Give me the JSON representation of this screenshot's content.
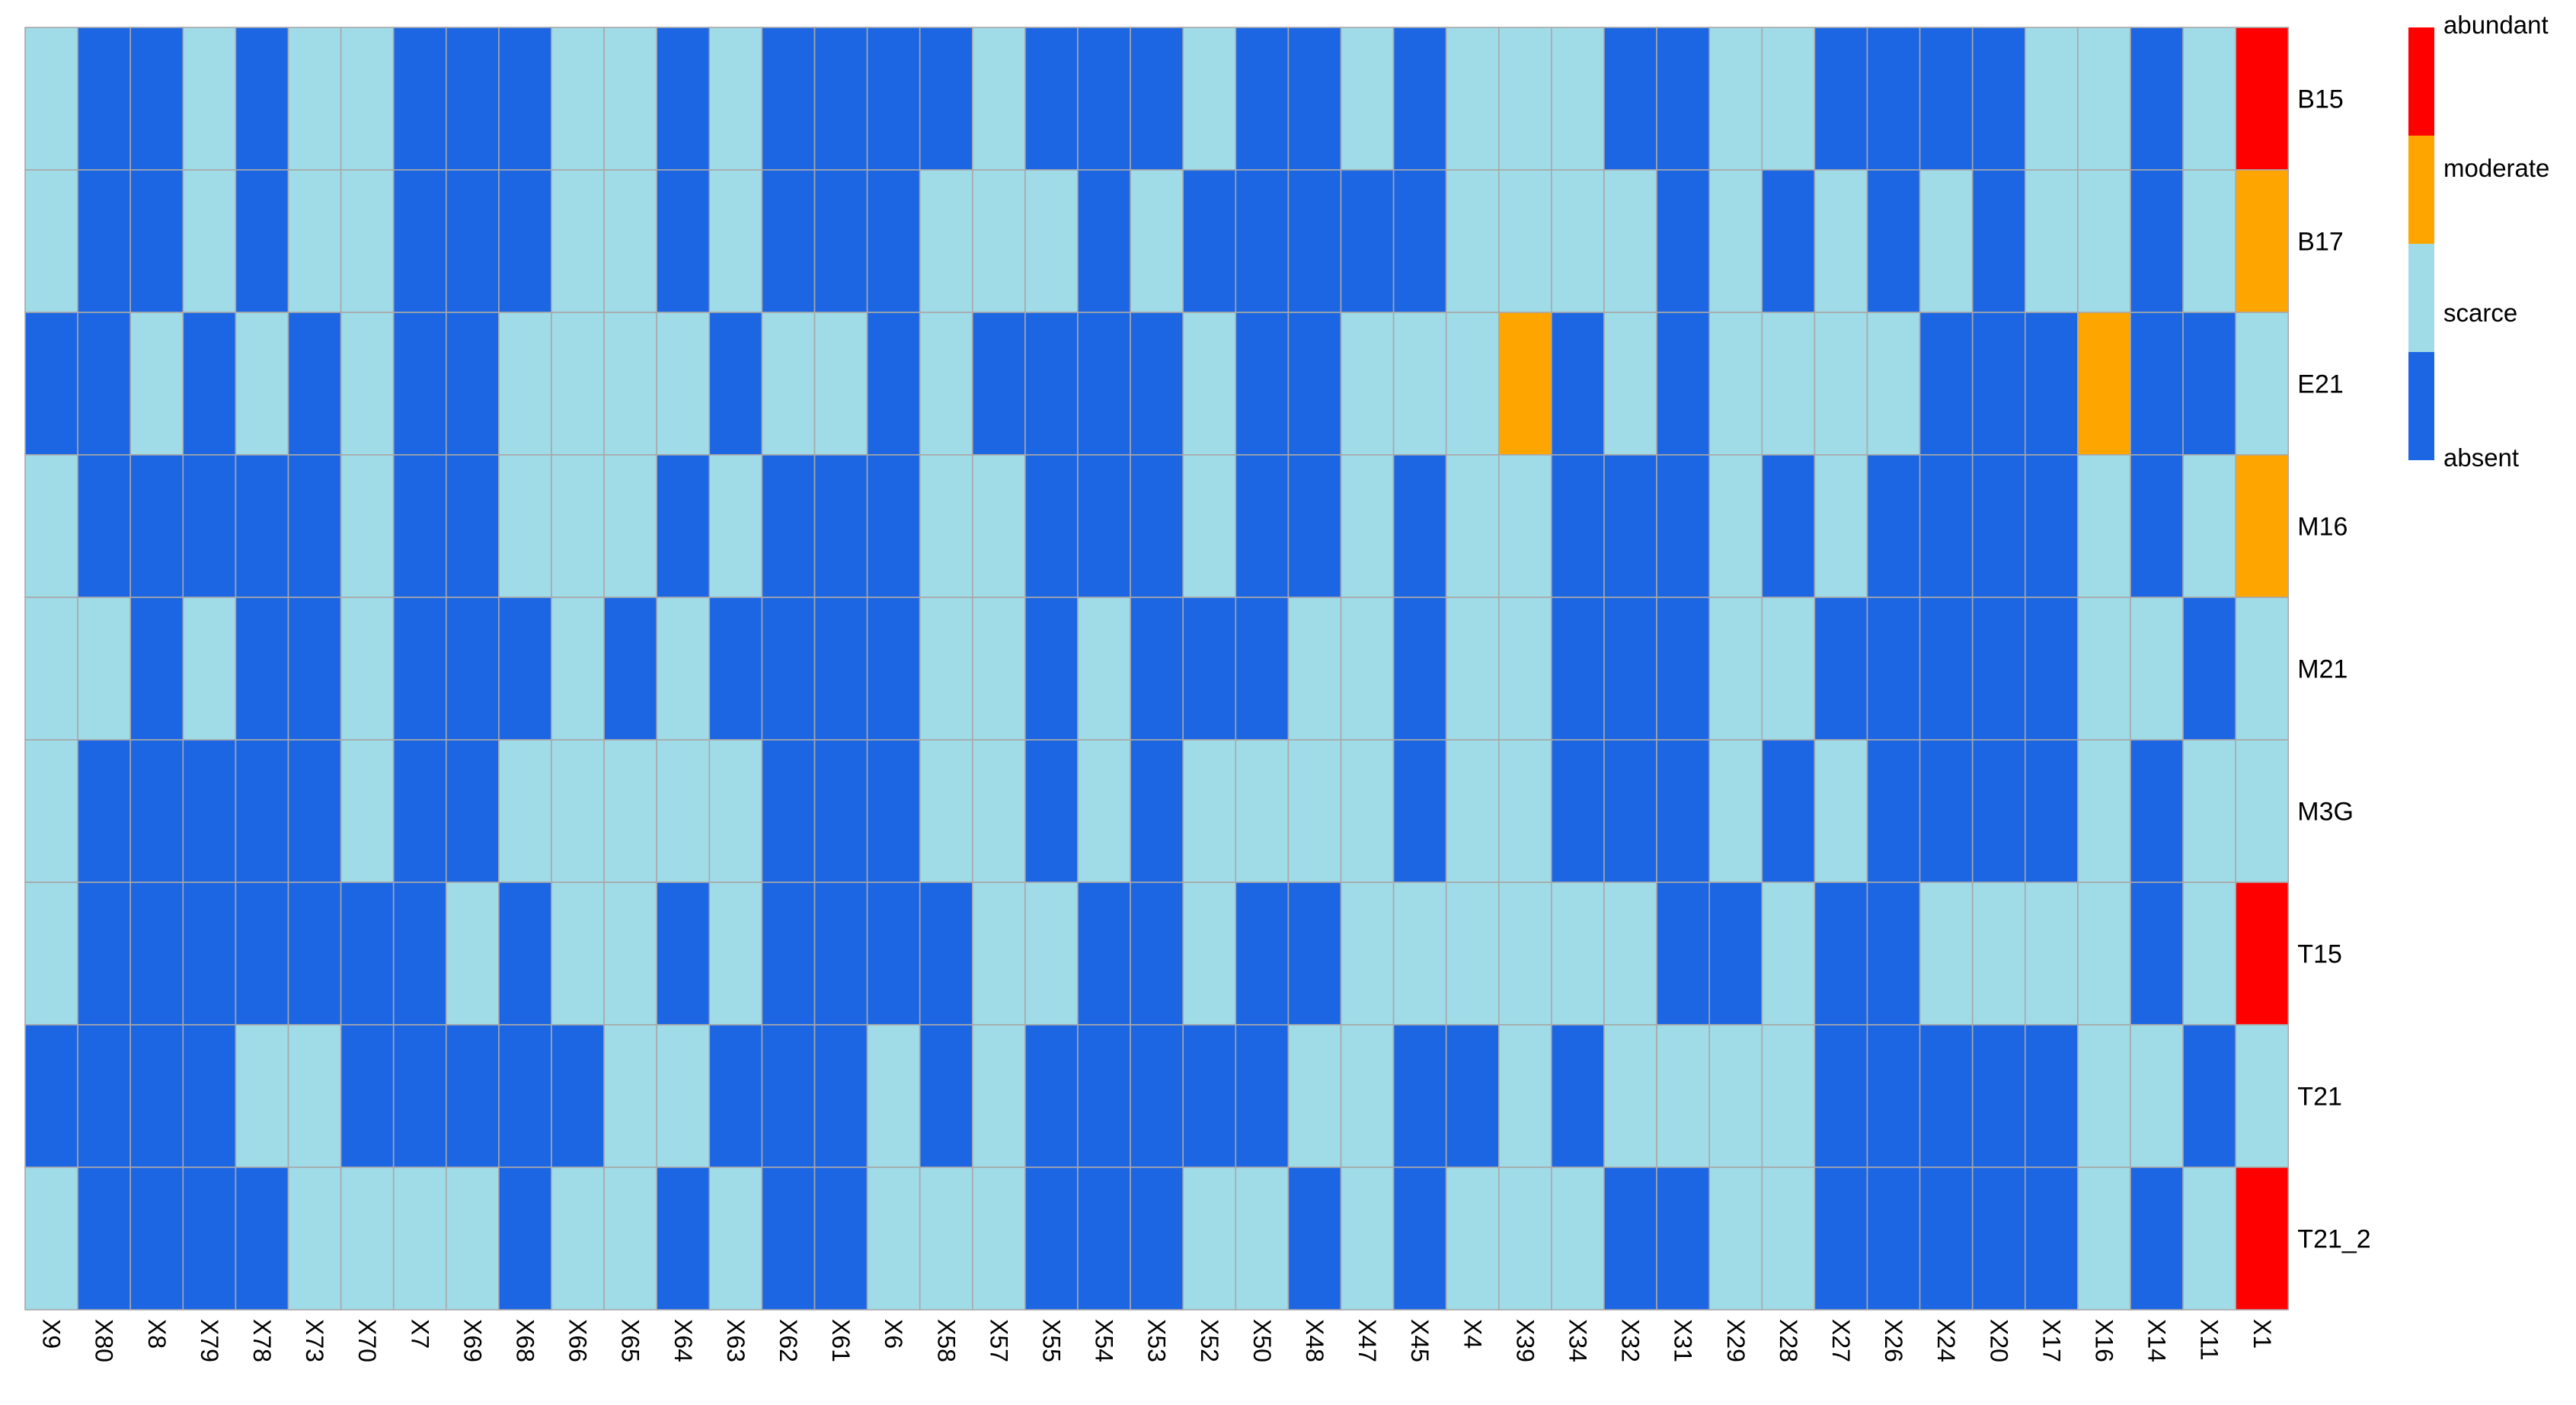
{
  "chart_data": {
    "type": "heatmap",
    "title": "",
    "xlabel": "",
    "ylabel": "",
    "columns": [
      "X9",
      "X80",
      "X8",
      "X79",
      "X78",
      "X73",
      "X70",
      "X7",
      "X69",
      "X68",
      "X66",
      "X65",
      "X64",
      "X63",
      "X62",
      "X61",
      "X6",
      "X58",
      "X57",
      "X55",
      "X54",
      "X53",
      "X52",
      "X50",
      "X48",
      "X47",
      "X45",
      "X4",
      "X39",
      "X34",
      "X32",
      "X31",
      "X29",
      "X28",
      "X27",
      "X26",
      "X24",
      "X20",
      "X17",
      "X16",
      "X14",
      "X11",
      "X1"
    ],
    "rows": [
      "B15",
      "B17",
      "E21",
      "M16",
      "M21",
      "M3G",
      "T15",
      "T21",
      "T21_2"
    ],
    "levels": [
      "absent",
      "scarce",
      "moderate",
      "abundant"
    ],
    "level_colors": {
      "absent": "#1c66e4",
      "scarce": "#a0dbe8",
      "moderate": "#ffa500",
      "abundant": "#ff0000"
    },
    "grid_color": "#a8a8a8",
    "legend": {
      "position": "top-right",
      "entries": [
        "abundant",
        "moderate",
        "scarce",
        "absent"
      ]
    },
    "values": [
      [
        1,
        0,
        0,
        1,
        0,
        1,
        1,
        0,
        0,
        0,
        1,
        1,
        0,
        1,
        0,
        0,
        0,
        0,
        1,
        0,
        0,
        0,
        1,
        0,
        0,
        1,
        0,
        1,
        1,
        1,
        0,
        0,
        1,
        1,
        0,
        0,
        0,
        0,
        1,
        1,
        0,
        1,
        3
      ],
      [
        1,
        0,
        0,
        1,
        0,
        1,
        1,
        0,
        0,
        0,
        1,
        1,
        0,
        1,
        0,
        0,
        0,
        1,
        1,
        1,
        0,
        1,
        0,
        0,
        0,
        0,
        0,
        1,
        1,
        1,
        1,
        0,
        1,
        0,
        1,
        0,
        1,
        0,
        1,
        1,
        0,
        1,
        2
      ],
      [
        0,
        0,
        1,
        0,
        1,
        0,
        1,
        0,
        0,
        1,
        1,
        1,
        1,
        0,
        1,
        1,
        0,
        1,
        0,
        0,
        0,
        0,
        1,
        0,
        0,
        1,
        1,
        1,
        2,
        0,
        1,
        0,
        1,
        1,
        1,
        1,
        0,
        0,
        0,
        2,
        0,
        0,
        1
      ],
      [
        1,
        0,
        0,
        0,
        0,
        0,
        1,
        0,
        0,
        1,
        1,
        1,
        0,
        1,
        0,
        0,
        0,
        1,
        1,
        0,
        0,
        0,
        1,
        0,
        0,
        1,
        0,
        1,
        1,
        0,
        0,
        0,
        1,
        0,
        1,
        0,
        0,
        0,
        0,
        1,
        0,
        1,
        2
      ],
      [
        1,
        1,
        0,
        1,
        0,
        0,
        1,
        0,
        0,
        0,
        1,
        0,
        1,
        0,
        0,
        0,
        0,
        1,
        1,
        0,
        1,
        0,
        0,
        0,
        1,
        1,
        0,
        1,
        1,
        0,
        0,
        0,
        1,
        1,
        0,
        0,
        0,
        0,
        0,
        1,
        1,
        0,
        1
      ],
      [
        1,
        0,
        0,
        0,
        0,
        0,
        1,
        0,
        0,
        1,
        1,
        1,
        1,
        1,
        0,
        0,
        0,
        1,
        1,
        0,
        1,
        0,
        1,
        1,
        1,
        1,
        0,
        1,
        1,
        0,
        0,
        0,
        1,
        0,
        1,
        0,
        0,
        0,
        0,
        1,
        0,
        1,
        1
      ],
      [
        1,
        0,
        0,
        0,
        0,
        0,
        0,
        0,
        1,
        0,
        1,
        1,
        0,
        1,
        0,
        0,
        0,
        0,
        1,
        1,
        0,
        0,
        1,
        0,
        0,
        1,
        1,
        1,
        1,
        1,
        1,
        0,
        0,
        1,
        0,
        0,
        1,
        1,
        1,
        1,
        0,
        1,
        3
      ],
      [
        0,
        0,
        0,
        0,
        1,
        1,
        0,
        0,
        0,
        0,
        0,
        1,
        1,
        0,
        0,
        0,
        1,
        0,
        1,
        0,
        0,
        0,
        0,
        0,
        1,
        1,
        0,
        0,
        1,
        0,
        1,
        1,
        1,
        1,
        0,
        0,
        0,
        0,
        0,
        1,
        1,
        0,
        1
      ],
      [
        1,
        0,
        0,
        0,
        0,
        1,
        1,
        1,
        1,
        0,
        1,
        1,
        0,
        1,
        0,
        0,
        1,
        1,
        1,
        0,
        0,
        0,
        1,
        1,
        0,
        1,
        0,
        1,
        1,
        1,
        0,
        0,
        1,
        1,
        0,
        0,
        0,
        0,
        0,
        1,
        0,
        1,
        3
      ]
    ]
  }
}
